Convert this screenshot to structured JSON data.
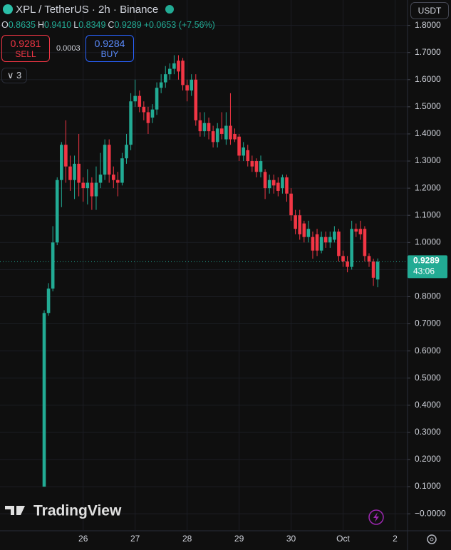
{
  "chart_data": {
    "type": "candlestick",
    "categories": [
      null,
      null,
      null,
      null,
      null,
      null,
      null,
      null,
      null,
      "26",
      null,
      null,
      null,
      null,
      null,
      null,
      null,
      null,
      null,
      null,
      null,
      "27",
      null,
      null,
      null,
      null,
      null,
      null,
      null,
      null,
      null,
      null,
      null,
      "28",
      null,
      null,
      null,
      null,
      null,
      null,
      null,
      null,
      null,
      null,
      null,
      "29",
      null,
      null,
      null,
      null,
      null,
      null,
      null,
      null,
      null,
      null,
      null,
      "30",
      null,
      null,
      null,
      null,
      null,
      null,
      null,
      null,
      null,
      null,
      null,
      "Oct",
      null,
      null,
      null,
      null,
      null,
      null,
      null,
      null,
      null,
      null,
      null,
      "2"
    ],
    "open": [
      0.1,
      0.74,
      0.83,
      1.0,
      1.23,
      1.36,
      1.28,
      1.23,
      1.29,
      1.22,
      1.2,
      1.22,
      1.17,
      1.22,
      1.25,
      1.36,
      1.25,
      1.23,
      1.22,
      1.31,
      1.36,
      1.52,
      1.54,
      1.5,
      1.48,
      1.46,
      1.49,
      1.57,
      1.59,
      1.62,
      1.64,
      1.67,
      1.67,
      1.58,
      1.56,
      1.6,
      1.45,
      1.41,
      1.44,
      1.41,
      1.37,
      1.42,
      1.38,
      1.43,
      1.4,
      1.39,
      1.32,
      1.34,
      1.3,
      1.3,
      1.26,
      1.26,
      1.2,
      1.23,
      1.22,
      1.2,
      1.24,
      1.18,
      1.1,
      1.1,
      1.07,
      1.02,
      1.02,
      1.03,
      0.97,
      1.02,
      1.0,
      1.01,
      1.04,
      0.95,
      0.93,
      0.91,
      1.05,
      1.05,
      1.05,
      0.95,
      0.93,
      0.8635,
      null,
      null,
      null,
      null
    ],
    "high": [
      0.75,
      0.85,
      1.06,
      1.24,
      1.37,
      1.45,
      1.32,
      1.32,
      1.4,
      1.24,
      1.27,
      1.24,
      1.28,
      1.33,
      1.38,
      1.38,
      1.28,
      1.26,
      1.33,
      1.4,
      1.55,
      1.6,
      1.56,
      1.52,
      1.5,
      1.51,
      1.59,
      1.62,
      1.65,
      1.66,
      1.69,
      1.69,
      1.68,
      1.6,
      1.62,
      1.62,
      1.48,
      1.48,
      1.46,
      1.43,
      1.44,
      1.48,
      1.48,
      1.55,
      1.42,
      1.4,
      1.37,
      1.36,
      1.32,
      1.31,
      1.32,
      1.27,
      1.25,
      1.25,
      1.24,
      1.25,
      1.25,
      1.2,
      1.12,
      1.12,
      1.08,
      1.08,
      1.04,
      1.05,
      1.04,
      1.04,
      1.04,
      1.06,
      1.05,
      0.97,
      0.95,
      1.08,
      1.07,
      1.08,
      1.06,
      0.96,
      0.94,
      0.941,
      null,
      null,
      null,
      null
    ],
    "low": [
      0.1,
      0.73,
      0.82,
      0.99,
      1.13,
      1.22,
      1.19,
      1.16,
      1.17,
      1.15,
      1.14,
      1.12,
      1.12,
      1.2,
      1.23,
      1.22,
      1.2,
      1.17,
      1.21,
      1.29,
      1.34,
      1.5,
      1.48,
      1.45,
      1.4,
      1.44,
      1.47,
      1.55,
      1.57,
      1.6,
      1.62,
      1.6,
      1.56,
      1.52,
      1.54,
      1.43,
      1.39,
      1.39,
      1.38,
      1.35,
      1.35,
      1.38,
      1.36,
      1.36,
      1.37,
      1.3,
      1.3,
      1.28,
      1.26,
      1.24,
      1.24,
      1.16,
      1.18,
      1.18,
      1.17,
      1.18,
      1.15,
      1.08,
      1.03,
      1.01,
      1.0,
      1.0,
      0.94,
      0.95,
      0.96,
      0.98,
      0.98,
      1.0,
      0.93,
      0.91,
      0.89,
      0.9,
      1.02,
      1.01,
      0.93,
      0.91,
      0.84,
      0.8349,
      null,
      null,
      null,
      null
    ],
    "close": [
      0.74,
      0.83,
      1.0,
      1.23,
      1.36,
      1.28,
      1.23,
      1.29,
      1.22,
      1.2,
      1.22,
      1.17,
      1.22,
      1.25,
      1.36,
      1.25,
      1.23,
      1.22,
      1.31,
      1.36,
      1.52,
      1.54,
      1.5,
      1.48,
      1.44,
      1.49,
      1.57,
      1.59,
      1.62,
      1.64,
      1.66,
      1.63,
      1.58,
      1.56,
      1.6,
      1.45,
      1.41,
      1.44,
      1.41,
      1.37,
      1.42,
      1.4,
      1.43,
      1.38,
      1.38,
      1.32,
      1.35,
      1.3,
      1.28,
      1.26,
      1.3,
      1.2,
      1.23,
      1.21,
      1.19,
      1.24,
      1.18,
      1.1,
      1.05,
      1.03,
      1.02,
      1.05,
      0.97,
      0.97,
      1.02,
      1.0,
      1.02,
      1.04,
      0.95,
      0.93,
      0.91,
      1.05,
      1.04,
      1.03,
      0.95,
      0.93,
      0.87,
      0.9289,
      null,
      null,
      null,
      null
    ],
    "up_color": "#22ab94",
    "down_color": "#f23645",
    "ylim": [
      -0.06,
      1.82
    ],
    "yticks": [
      {
        "value": 0,
        "label": "−0.0000"
      },
      {
        "value": 0.1,
        "label": "0.1000"
      },
      {
        "value": 0.2,
        "label": "0.2000"
      },
      {
        "value": 0.3,
        "label": "0.3000"
      },
      {
        "value": 0.4,
        "label": "0.4000"
      },
      {
        "value": 0.5,
        "label": "0.5000"
      },
      {
        "value": 0.6,
        "label": "0.6000"
      },
      {
        "value": 0.7,
        "label": "0.7000"
      },
      {
        "value": 0.8,
        "label": "0.8000"
      },
      {
        "value": 0.9,
        "label": "0.9000"
      },
      {
        "value": 1.0,
        "label": "1.0000"
      },
      {
        "value": 1.1,
        "label": "1.1000"
      },
      {
        "value": 1.2,
        "label": "1.2000"
      },
      {
        "value": 1.3,
        "label": "1.3000"
      },
      {
        "value": 1.4,
        "label": "1.4000"
      },
      {
        "value": 1.5,
        "label": "1.5000"
      },
      {
        "value": 1.6,
        "label": "1.6000"
      },
      {
        "value": 1.7,
        "label": "1.7000"
      },
      {
        "value": 1.8,
        "label": "1.8000"
      }
    ],
    "grid": true,
    "last_price": 0.9289,
    "countdown": "43:06"
  },
  "header": {
    "symbol": "XPL / TetherUS · 2h · Binance",
    "ohlc": [
      {
        "key": "O",
        "value": "0.8635"
      },
      {
        "key": "H",
        "value": "0.9410"
      },
      {
        "key": "L",
        "value": "0.8349"
      },
      {
        "key": "C",
        "value": "0.9289"
      }
    ],
    "change": "+0.0653 (+7.56%)",
    "sell_price": "0.9281",
    "sell": "SELL",
    "spread": "0.0003",
    "buy_price": "0.9284",
    "buy": "BUY",
    "indicators": "3",
    "currency": "USDT",
    "watermark": "TradingView"
  }
}
